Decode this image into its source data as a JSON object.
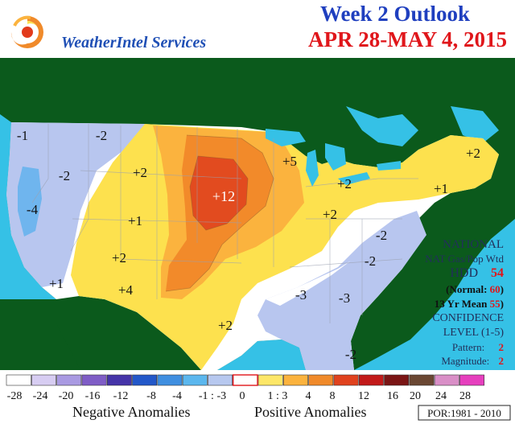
{
  "header": {
    "brand": "WeatherIntel Services",
    "title": "Week 2 Outlook",
    "dates": "APR 28-MAY 4, 2015"
  },
  "map": {
    "anomaly_labels": [
      {
        "text": "-1",
        "region": "pacific-northwest"
      },
      {
        "text": "-2",
        "region": "northern-rockies"
      },
      {
        "text": "-2",
        "region": "great-basin"
      },
      {
        "text": "-4",
        "region": "california"
      },
      {
        "text": "+2",
        "region": "montana-wyoming"
      },
      {
        "text": "+1",
        "region": "colorado"
      },
      {
        "text": "+2",
        "region": "arizona"
      },
      {
        "text": "+1",
        "region": "southern-california"
      },
      {
        "text": "+4",
        "region": "new-mexico"
      },
      {
        "text": "+12",
        "region": "nebraska"
      },
      {
        "text": "+5",
        "region": "wisconsin"
      },
      {
        "text": "+2",
        "region": "michigan"
      },
      {
        "text": "+2",
        "region": "ohio-valley"
      },
      {
        "text": "+2",
        "region": "new-england"
      },
      {
        "text": "+1",
        "region": "new-york"
      },
      {
        "text": "-2",
        "region": "virginia"
      },
      {
        "text": "-2",
        "region": "carolinas"
      },
      {
        "text": "-3",
        "region": "mississippi"
      },
      {
        "text": "-3",
        "region": "alabama"
      },
      {
        "text": "+2",
        "region": "texas"
      },
      {
        "text": "-2",
        "region": "florida"
      }
    ],
    "stats": {
      "national": "NATIONAL",
      "weighting": "NAT Gas/Pop Wtd",
      "hdd_label": "HDD",
      "hdd_value": "54",
      "normal_label": "(Normal:",
      "normal_value": "60",
      "normal_close": ")",
      "mean_label": "13 Yr Mean",
      "mean_value": "55",
      "mean_close": ")",
      "mean_open": "",
      "confidence_label": "CONFIDENCE",
      "level_label": "LEVEL (1-5)",
      "pattern_label": "Pattern:",
      "pattern_value": "2",
      "magnitude_label": "Magnitude:",
      "magnitude_value": "2"
    },
    "colors": {
      "water": "#35c1e6",
      "land_outside": "#0b5a1c",
      "near_normal": "#ffffff",
      "cool_1_3": "#b8c6ef",
      "cool_4": "#6fb5ee",
      "warm_1_3": "#fde14e",
      "warm_4": "#fbb33e",
      "warm_8": "#f28a2a",
      "warm_12": "#e24b1f",
      "warm_16": "#c4221a"
    }
  },
  "legend": {
    "swatch_colors": [
      "#ffffff",
      "#d7cdf2",
      "#a99ae2",
      "#7f5dc6",
      "#4534a8",
      "#2358c9",
      "#3f8fe0",
      "#5bb7ee",
      "#b7c8ef",
      "#ffffff",
      "#fde768",
      "#fbb33e",
      "#f08a2a",
      "#e0421e",
      "#c21a1a",
      "#7a1515",
      "#6a4733",
      "#d98fc7",
      "#e63fbe"
    ],
    "tick_labels": [
      "-28",
      "-24",
      "-20",
      "-16",
      "-12",
      "-8",
      "-4",
      "-1 : -3",
      "0",
      "1 : 3",
      "4",
      "8",
      "12",
      "16",
      "20",
      "24",
      "28"
    ],
    "negative_label": "Negative Anomalies",
    "positive_label": "Positive Anomalies",
    "por_label": "POR:1981 - 2010"
  }
}
